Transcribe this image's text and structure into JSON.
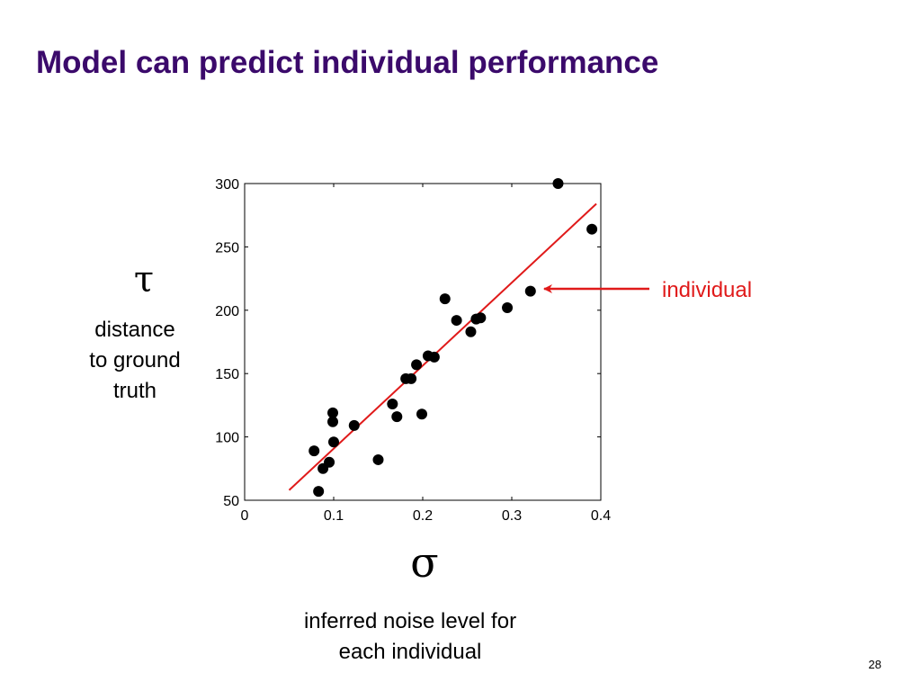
{
  "slide": {
    "title": "Model can predict individual performance",
    "page_number": "28"
  },
  "y_axis": {
    "symbol": "τ",
    "description_lines": [
      "distance",
      "to ground",
      "truth"
    ]
  },
  "x_axis": {
    "symbol": "σ",
    "description_lines": [
      "inferred noise level for",
      "each individual"
    ]
  },
  "annotation": {
    "label": "individual",
    "color": "#e01a1a"
  },
  "chart_data": {
    "type": "scatter",
    "xlim": [
      0,
      0.4
    ],
    "ylim": [
      50,
      300
    ],
    "x_ticks": [
      0,
      0.1,
      0.2,
      0.3,
      0.4
    ],
    "x_tick_labels": [
      "0",
      "0.1",
      "0.2",
      "0.3",
      "0.4"
    ],
    "y_ticks": [
      50,
      100,
      150,
      200,
      250,
      300
    ],
    "y_tick_labels": [
      "50",
      "100",
      "150",
      "200",
      "250",
      "300"
    ],
    "grid": false,
    "point_color": "#000000",
    "points": [
      [
        0.078,
        89
      ],
      [
        0.083,
        57
      ],
      [
        0.088,
        75
      ],
      [
        0.095,
        80
      ],
      [
        0.099,
        119
      ],
      [
        0.099,
        112
      ],
      [
        0.1,
        96
      ],
      [
        0.123,
        109
      ],
      [
        0.15,
        82
      ],
      [
        0.166,
        126
      ],
      [
        0.171,
        116
      ],
      [
        0.181,
        146
      ],
      [
        0.187,
        146
      ],
      [
        0.193,
        157
      ],
      [
        0.199,
        118
      ],
      [
        0.206,
        164
      ],
      [
        0.213,
        163
      ],
      [
        0.225,
        209
      ],
      [
        0.238,
        192
      ],
      [
        0.254,
        183
      ],
      [
        0.26,
        193
      ],
      [
        0.265,
        194
      ],
      [
        0.295,
        202
      ],
      [
        0.321,
        215
      ],
      [
        0.352,
        300
      ],
      [
        0.39,
        264
      ]
    ],
    "fit_line": {
      "color": "#e01a1a",
      "x": [
        0.05,
        0.395
      ],
      "y": [
        58,
        284
      ]
    },
    "highlight_point": [
      0.321,
      215
    ]
  }
}
